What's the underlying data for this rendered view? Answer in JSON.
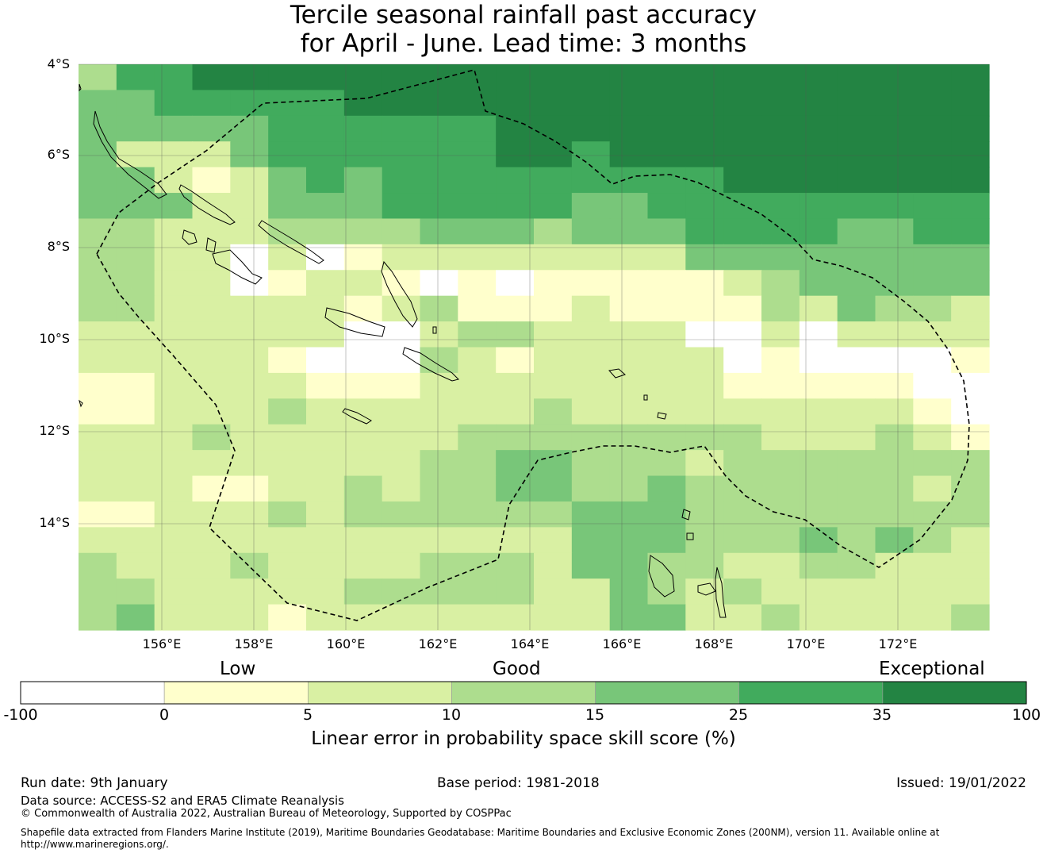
{
  "title": {
    "line1": "Tercile seasonal rainfall past accuracy",
    "line2": "for April - June. Lead time: 3 months"
  },
  "map": {
    "lat_labels": [
      "4°S",
      "6°S",
      "8°S",
      "10°S",
      "12°S",
      "14°S"
    ],
    "lon_labels": [
      "156°E",
      "158°E",
      "160°E",
      "162°E",
      "164°E",
      "166°E",
      "168°E",
      "170°E",
      "172°E"
    ],
    "boundary_style": "dashed black (EEZ)",
    "gridlines": true,
    "palette": {
      "-1": "#ffffff",
      "0": "#ffffcc",
      "1": "#d9f0a3",
      "2": "#addd8e",
      "3": "#78c679",
      "4": "#41ab5d",
      "5": "#238443"
    },
    "grid_classes": [
      "2 4 4 5 5 5 5 5 5 5 5 5 5 5 5 5 5 5 5 5 5 5 5 5",
      "3 3 4 4 4 4 4 5 5 5 5 5 5 5 5 5 5 5 5 5 5 5 5 5",
      "3 3 3 3 3 4 4 4 4 4 4 5 5 5 5 5 5 5 5 5 5 5 5 5",
      "3 1 1 1 3 4 4 4 4 4 4 5 5 4 5 5 5 5 5 5 5 5 5 5",
      "3 3 1 0 1 3 4 3 4 4 4 4 4 4 4 4 4 5 5 5 5 5 5 5",
      "3 3 3 1 1 3 3 3 4 4 4 4 4 3 3 4 4 4 4 4 4 4 4 4",
      "2 2 1 1 1 2 2 2 2 3 3 3 2 3 3 3 4 4 4 4 3 3 4 4",
      "2 2 1 1 -1 1 -1 0 1 1 1 1 1 1 1 1 3 3 3 3 3 3 3 3",
      "2 2 1 1 -1 0 1 1 0 -1 0 -1 0 0 0 0 0 1 2 3 3 3 3 3",
      "2 2 1 1 1 1 1 0 1 2 0 0 0 1 0 0 0 0 2 1 3 2 2 1",
      "1 1 1 1 1 1 1 -1 -1 1 2 2 1 1 1 1 -1 -1 1 -1 1 1 1 1",
      "1 1 1 1 1 0 -1 -1 -1 2 1 0 1 1 1 1 1 -1 0 -1 -1 -1 -1 0",
      "0 0 1 1 1 1 0 0 0 1 1 1 1 1 1 1 1 0 0 0 0 0 -1 -1",
      "0 0 1 1 1 2 1 1 1 1 1 1 2 1 1 1 1 1 1 1 1 1 0 -1",
      "1 1 1 2 1 1 1 1 1 1 2 2 2 2 2 2 2 2 1 1 1 2 1 0",
      "1 1 1 1 1 1 1 1 1 2 2 3 3 2 2 2 1 2 2 2 2 2 2 2",
      "1 1 1 0 0 1 1 2 1 2 2 3 3 2 2 3 2 2 2 2 2 2 1 2",
      "0 0 1 1 1 2 1 2 2 2 2 2 2 3 3 3 2 2 2 2 2 2 2 2",
      "1 1 1 1 1 1 1 1 1 1 1 1 1 3 3 3 2 2 2 3 2 3 2 1",
      "2 1 1 1 2 1 1 1 1 2 2 2 1 3 3 2 2 1 1 2 2 1 1 1",
      "2 2 1 1 1 1 1 2 2 2 2 2 1 1 3 2 1 2 1 1 1 1 1 1",
      "2 3 1 1 1 0 1 1 1 1 1 1 1 1 3 3 1 1 2 1 1 1 1 2"
    ]
  },
  "colorbar": {
    "category_low": "Low",
    "category_good": "Good",
    "category_exceptional": "Exceptional",
    "ticks": [
      "-100",
      "0",
      "5",
      "10",
      "15",
      "25",
      "35",
      "100"
    ],
    "colors": [
      "#ffffff",
      "#ffffcc",
      "#d9f0a3",
      "#addd8e",
      "#78c679",
      "#41ab5d",
      "#238443"
    ],
    "label": "Linear error in probability space skill score (%)"
  },
  "footer": {
    "run_date": "Run date: 9th January",
    "base_period": "Base period: 1981-2018",
    "issued": "Issued: 19/01/2022",
    "data_source": "Data source: ACCESS-S2 and ERA5 Climate Reanalysis",
    "copyright": "© Commonwealth of Australia 2022, Australian Bureau of Meteorology, Supported by COSPPac",
    "shapefile_line1": "Shapefile data extracted from Flanders Marine Institute (2019), Maritime Boundaries Geodatabase: Maritime Boundaries and Exclusive Economic Zones (200NM), version 11. Available online at",
    "shapefile_line2": "http://www.marineregions.org/."
  }
}
